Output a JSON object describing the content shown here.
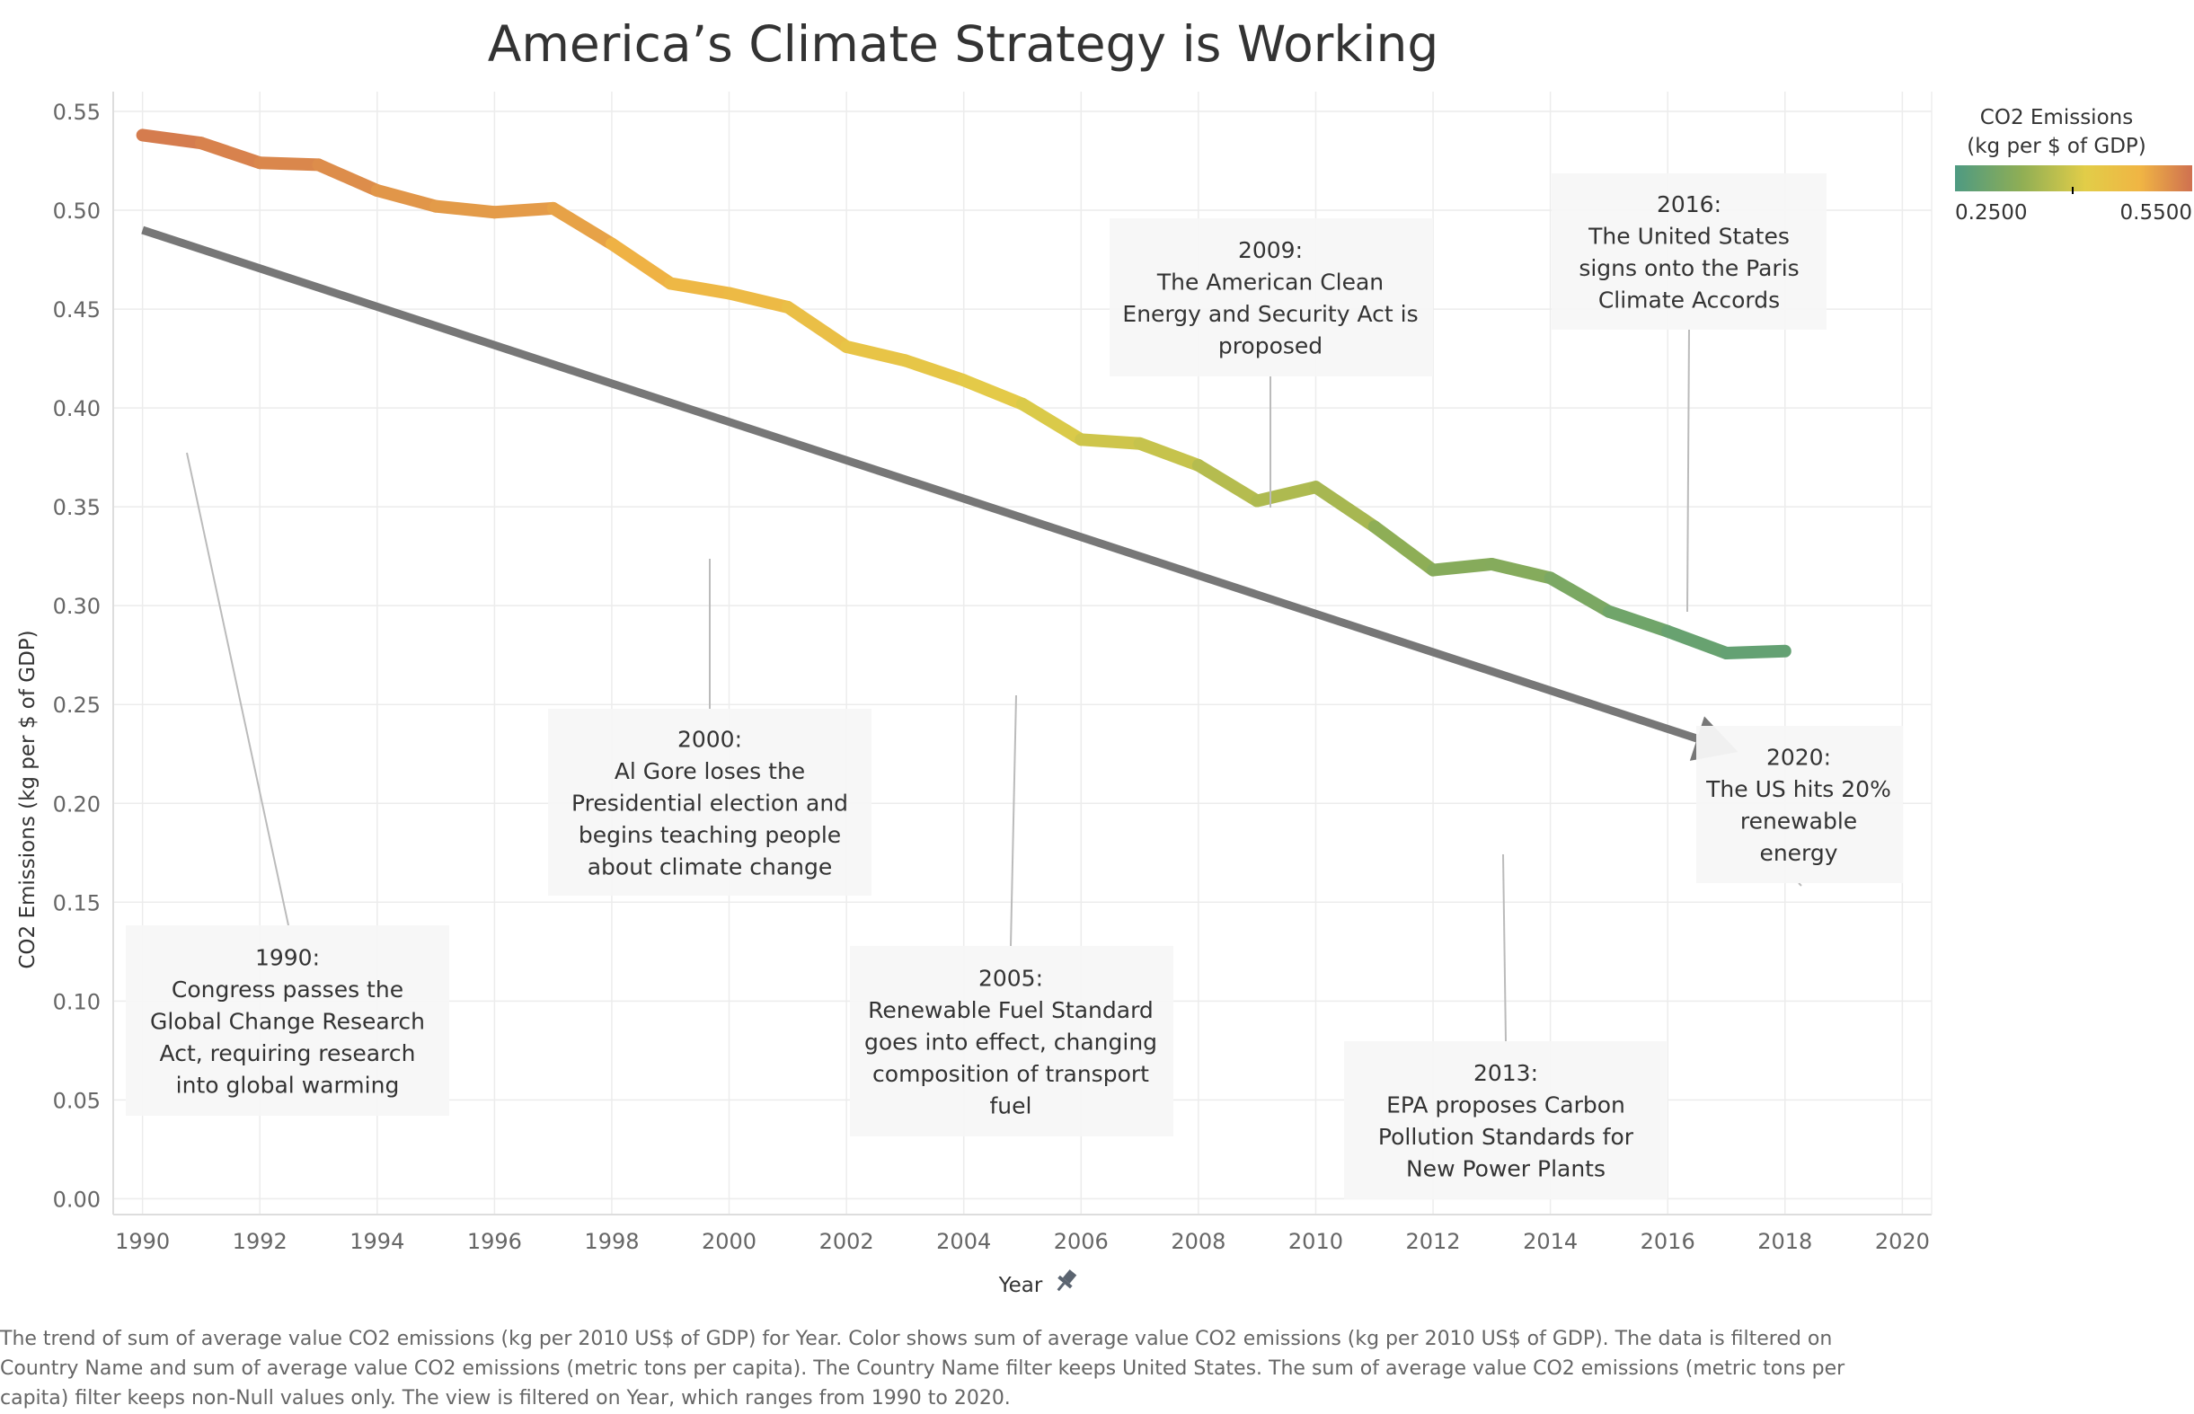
{
  "chart_data": {
    "type": "line",
    "title": "America’s Climate Strategy is Working",
    "xlabel": "Year",
    "ylabel": "CO2 Emissions (kg per $ of GDP)",
    "xlim": [
      1990,
      2020
    ],
    "ylim": [
      0,
      0.55
    ],
    "x_ticks": [
      1990,
      1992,
      1994,
      1996,
      1998,
      2000,
      2002,
      2004,
      2006,
      2008,
      2010,
      2012,
      2014,
      2016,
      2018,
      2020
    ],
    "y_ticks": [
      0.0,
      0.05,
      0.1,
      0.15,
      0.2,
      0.25,
      0.3,
      0.35,
      0.4,
      0.45,
      0.5,
      0.55
    ],
    "grid": true,
    "series": [
      {
        "x": [
          1990,
          1991,
          1992,
          1993,
          1994,
          1995,
          1996,
          1997,
          1998,
          1999,
          2000,
          2001,
          2002,
          2003,
          2004,
          2005,
          2006,
          2007,
          2008,
          2009,
          2010,
          2011,
          2012,
          2013,
          2014,
          2015,
          2016,
          2017,
          2018
        ],
        "values": [
          0.538,
          0.534,
          0.524,
          0.523,
          0.51,
          0.502,
          0.499,
          0.501,
          0.483,
          0.463,
          0.458,
          0.451,
          0.431,
          0.424,
          0.414,
          0.402,
          0.384,
          0.382,
          0.371,
          0.353,
          0.36,
          0.34,
          0.318,
          0.321,
          0.314,
          0.297,
          0.287,
          0.276,
          0.277
        ]
      }
    ],
    "trend_arrow": {
      "from": [
        1990,
        0.49
      ],
      "to": [
        2017.2,
        0.226
      ],
      "color": "#777777"
    },
    "color_legend": {
      "title": [
        "CO2 Emissions",
        "(kg per $ of GDP)"
      ],
      "min_label": "0.2500",
      "max_label": "0.5500",
      "stops": [
        "#4e9a82",
        "#8fae55",
        "#e2cd48",
        "#f0b544",
        "#cf7050"
      ]
    },
    "annotations": [
      {
        "lines": [
          "1990:",
          "Congress passes the",
          "Global Change Research",
          "Act, requiring research",
          "into global warming"
        ]
      },
      {
        "lines": [
          "2000:",
          "Al Gore loses the",
          "Presidential election and",
          "begins teaching people",
          "about climate change"
        ]
      },
      {
        "lines": [
          "2005:",
          "Renewable Fuel Standard",
          "goes into effect, changing",
          "composition of transport",
          "fuel"
        ]
      },
      {
        "lines": [
          "2009:",
          "The American Clean",
          "Energy and Security Act is",
          "proposed"
        ]
      },
      {
        "lines": [
          "2013:",
          "EPA proposes Carbon",
          "Pollution Standards for",
          "New Power Plants"
        ]
      },
      {
        "lines": [
          "2016:",
          "The United States",
          "signs onto the Paris",
          "Climate Accords"
        ]
      },
      {
        "lines": [
          "2020:",
          "The US hits 20%",
          "renewable",
          "energy"
        ]
      }
    ]
  },
  "caption": "The trend of sum of average value CO2 emissions (kg per 2010 US$ of GDP) for Year.  Color shows sum of average value CO2 emissions (kg per 2010 US$ of GDP). The data is filtered on Country Name and sum of average value CO2 emissions (metric tons per capita). The Country Name filter keeps United States. The sum of average value CO2 emissions (metric tons per capita) filter keeps non-Null values only. The view is filtered on Year, which ranges from 1990 to 2020."
}
